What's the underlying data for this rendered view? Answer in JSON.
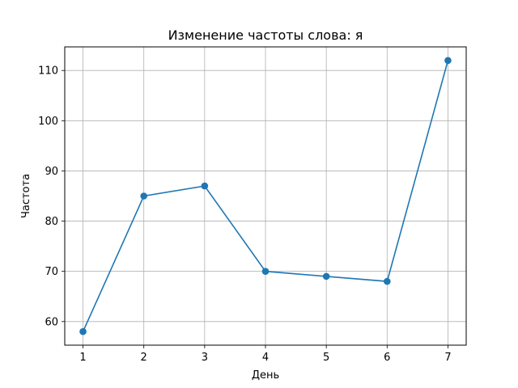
{
  "chart_data": {
    "type": "line",
    "title": "Изменение частоты слова: я",
    "xlabel": "День",
    "ylabel": "Частота",
    "x": [
      1,
      2,
      3,
      4,
      5,
      6,
      7
    ],
    "series": [
      {
        "values": [
          58,
          85,
          87,
          70,
          69,
          68,
          112
        ],
        "color": "#1f77b4",
        "marker": "circle"
      }
    ],
    "xlim": [
      0.7,
      7.3
    ],
    "ylim": [
      55.3,
      114.7
    ],
    "xticks": [
      1,
      2,
      3,
      4,
      5,
      6,
      7
    ],
    "yticks": [
      60,
      70,
      80,
      90,
      100,
      110
    ],
    "grid": true,
    "legend": "none",
    "colors": {
      "grid": "#b0b0b0",
      "axes": "#000000"
    }
  }
}
